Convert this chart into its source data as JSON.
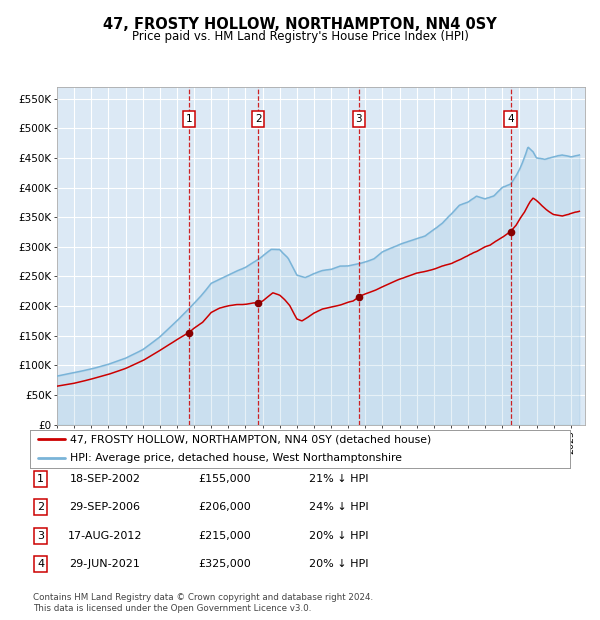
{
  "title": "47, FROSTY HOLLOW, NORTHAMPTON, NN4 0SY",
  "subtitle": "Price paid vs. HM Land Registry's House Price Index (HPI)",
  "background_color": "#ffffff",
  "plot_bg_color": "#dce9f5",
  "grid_color": "#ffffff",
  "hpi_color": "#7ab4d8",
  "price_color": "#cc0000",
  "ylim": [
    0,
    570000
  ],
  "ytick_vals": [
    0,
    50000,
    100000,
    150000,
    200000,
    250000,
    300000,
    350000,
    400000,
    450000,
    500000,
    550000
  ],
  "ytick_labels": [
    "£0",
    "£50K",
    "£100K",
    "£150K",
    "£200K",
    "£250K",
    "£300K",
    "£350K",
    "£400K",
    "£450K",
    "£500K",
    "£550K"
  ],
  "xlim_start": 1995.0,
  "xlim_end": 2025.83,
  "transactions": [
    {
      "num": 1,
      "date_str": "18-SEP-2002",
      "year": 2002.72,
      "price": 155000,
      "pct": "21% ↓ HPI"
    },
    {
      "num": 2,
      "date_str": "29-SEP-2006",
      "year": 2006.75,
      "price": 206000,
      "pct": "24% ↓ HPI"
    },
    {
      "num": 3,
      "date_str": "17-AUG-2012",
      "year": 2012.63,
      "price": 215000,
      "pct": "20% ↓ HPI"
    },
    {
      "num": 4,
      "date_str": "29-JUN-2021",
      "year": 2021.49,
      "price": 325000,
      "pct": "20% ↓ HPI"
    }
  ],
  "legend_line1": "47, FROSTY HOLLOW, NORTHAMPTON, NN4 0SY (detached house)",
  "legend_line2": "HPI: Average price, detached house, West Northamptonshire",
  "footer": "Contains HM Land Registry data © Crown copyright and database right 2024.\nThis data is licensed under the Open Government Licence v3.0."
}
